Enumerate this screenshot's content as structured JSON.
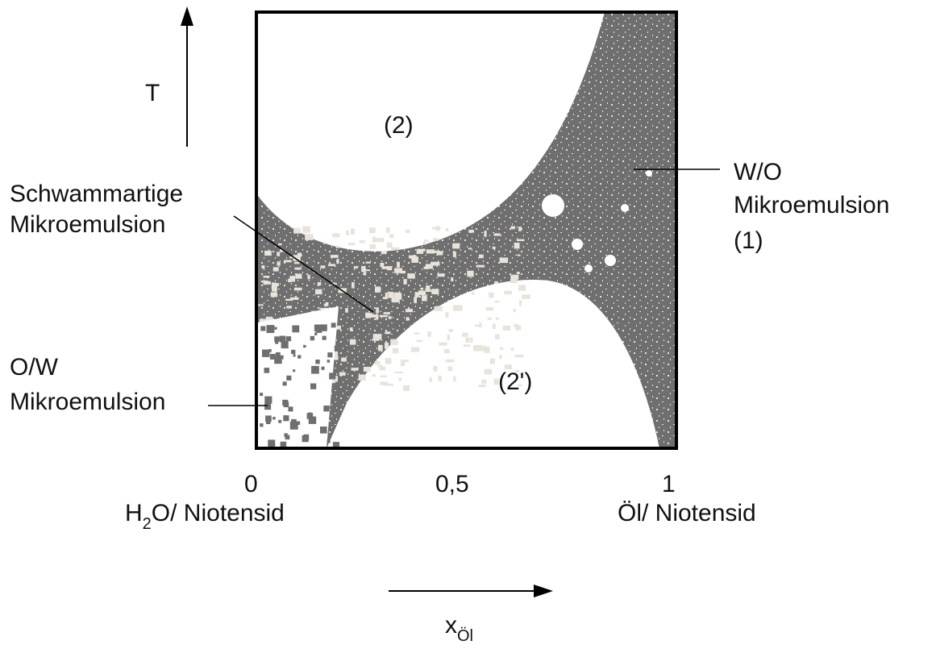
{
  "axes": {
    "y_label": "T",
    "x_label": "x",
    "x_label_sub": "Öl",
    "x_ticks": [
      "0",
      "0,5",
      "1"
    ],
    "x_end_left": {
      "main": "H",
      "sub": "2",
      "rest": "O/ Niotensid"
    },
    "x_end_right": "Öl/ Niotensid"
  },
  "regions": {
    "upper_two_phase": "(2)",
    "lower_two_phase": "(2')"
  },
  "callouts": {
    "sponge": [
      "Schwammartige",
      "Mikroemulsion"
    ],
    "wo": [
      "W/O",
      "Mikroemulsion",
      "(1)"
    ],
    "ow": [
      "O/W",
      "Mikroemulsion"
    ]
  },
  "colors": {
    "phase_fill": "#6f6f6f",
    "speckle": "#e8e4dc",
    "frame": "#000000"
  }
}
